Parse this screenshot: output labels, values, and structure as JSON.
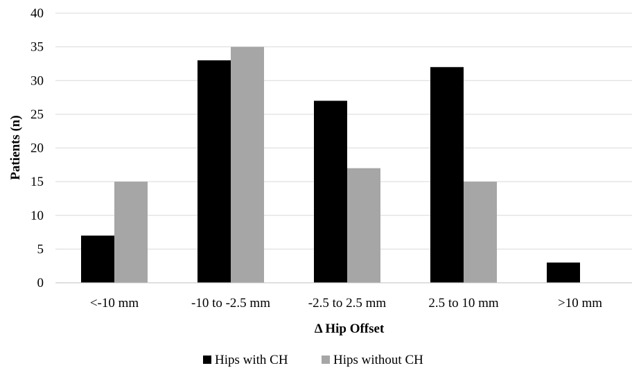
{
  "chart_data": {
    "type": "bar",
    "title": "",
    "xlabel": "Δ Hip Offset",
    "ylabel": "Patients (n)",
    "categories": [
      "<-10 mm",
      "-10 to -2.5 mm",
      "-2.5 to 2.5 mm",
      "2.5 to 10 mm",
      ">10 mm"
    ],
    "series": [
      {
        "name": "Hips with CH",
        "values": [
          7,
          33,
          27,
          32,
          3
        ],
        "color": "#000000"
      },
      {
        "name": "Hips without CH",
        "values": [
          15,
          35,
          17,
          15,
          0
        ],
        "color": "#a6a6a6"
      }
    ],
    "ylim": [
      0,
      40
    ],
    "yticks": [
      0,
      5,
      10,
      15,
      20,
      25,
      30,
      35,
      40
    ],
    "grid": true,
    "legend_position": "bottom"
  }
}
